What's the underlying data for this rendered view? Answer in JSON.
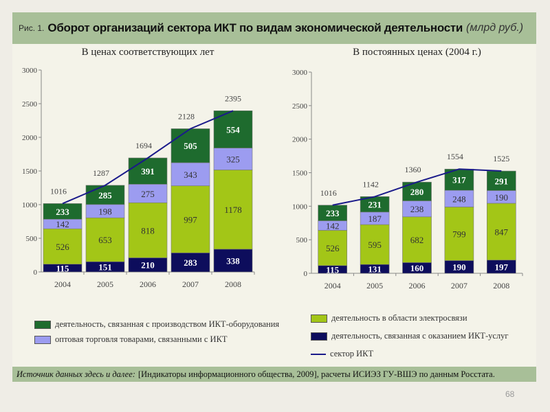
{
  "header": {
    "prefix": "Рис. 1.",
    "title": "Оборот организаций сектора ИКТ по видам экономической деятельности",
    "unit": "(млрд руб.)"
  },
  "colors": {
    "equipment": "#1e6b2e",
    "wholesale": "#9c9cf0",
    "telecom": "#a3c617",
    "services": "#0d0d5c",
    "line": "#1a1a8a"
  },
  "chart_data": [
    {
      "type": "bar",
      "stacked": true,
      "title": "В ценах соответствующих лет",
      "categories": [
        "2004",
        "2005",
        "2006",
        "2007",
        "2008"
      ],
      "ylim": [
        0,
        3000
      ],
      "yticks": [
        "0",
        "500",
        "1000",
        "1500",
        "2000",
        "2500",
        "3000"
      ],
      "series": [
        {
          "key": "services",
          "name": "деятельность, связанная с оказанием ИКТ-услуг",
          "values": [
            115,
            151,
            210,
            283,
            338
          ]
        },
        {
          "key": "telecom",
          "name": "деятельность в области электросвязи",
          "values": [
            526,
            653,
            818,
            997,
            1178
          ]
        },
        {
          "key": "wholesale",
          "name": "оптовая торговля товарами, связанными с ИКТ",
          "values": [
            142,
            198,
            275,
            343,
            325
          ]
        },
        {
          "key": "equipment",
          "name": "деятельность, связанная с производством ИКТ-оборудования",
          "values": [
            233,
            285,
            391,
            505,
            554
          ]
        }
      ],
      "totals": {
        "name": "сектор ИКТ",
        "values": [
          1016,
          1287,
          1694,
          2128,
          2395
        ]
      }
    },
    {
      "type": "bar",
      "stacked": true,
      "title": "В постоянных ценах (2004 г.)",
      "categories": [
        "2004",
        "2005",
        "2006",
        "2007",
        "2008"
      ],
      "ylim": [
        0,
        3000
      ],
      "yticks": [
        "0",
        "500",
        "1000",
        "1500",
        "2000",
        "2500",
        "3000"
      ],
      "series": [
        {
          "key": "services",
          "name": "деятельность, связанная с оказанием ИКТ-услуг",
          "values": [
            115,
            131,
            160,
            190,
            197
          ]
        },
        {
          "key": "telecom",
          "name": "деятельность в области электросвязи",
          "values": [
            526,
            595,
            682,
            799,
            847
          ]
        },
        {
          "key": "wholesale",
          "name": "оптовая торговля товарами, связанными с ИКТ",
          "values": [
            142,
            187,
            238,
            248,
            190
          ]
        },
        {
          "key": "equipment",
          "name": "деятельность, связанная с производством ИКТ-оборудования",
          "values": [
            233,
            231,
            280,
            317,
            291
          ]
        }
      ],
      "totals": {
        "name": "сектор ИКТ",
        "values": [
          1016,
          1142,
          1360,
          1554,
          1525
        ]
      }
    }
  ],
  "legend": {
    "equipment": "деятельность, связанная с производством ИКТ-оборудования",
    "wholesale": "оптовая торговля товарами, связанными с ИКТ",
    "telecom": "деятельность в области электросвязи",
    "services": "деятельность, связанная с оказанием ИКТ-услуг",
    "line": "сектор ИКТ"
  },
  "source": {
    "label": "Источник данных здесь и далее:",
    "text": "[Индикаторы информационного общества, 2009], расчеты ИСИЭЗ ГУ-ВШЭ по данным Росстата."
  },
  "page_number": "68"
}
